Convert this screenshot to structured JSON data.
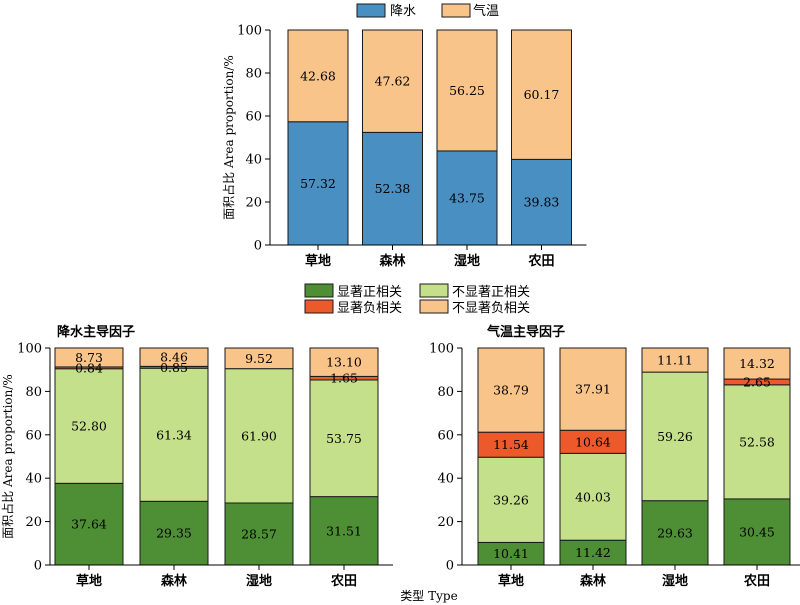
{
  "x_label": "类型 Type",
  "chart_data": [
    {
      "type": "bar",
      "stacked": true,
      "title": "",
      "ylabel": "面积占比 Area proportion/%",
      "ylim": [
        0,
        100
      ],
      "yticks": [
        0,
        20,
        40,
        60,
        80,
        100
      ],
      "legend_position": "top-center",
      "categories": [
        "草地",
        "森林",
        "湿地",
        "农田"
      ],
      "series": [
        {
          "name": "降水",
          "color": "#4a8fc2",
          "values": [
            57.32,
            52.38,
            43.75,
            39.83
          ],
          "labels": [
            "57.32",
            "52.38",
            "43.75",
            "39.83"
          ]
        },
        {
          "name": "气温",
          "color": "#f9c48a",
          "values": [
            42.68,
            47.62,
            56.25,
            60.17
          ],
          "labels": [
            "42.68",
            "47.62",
            "56.25",
            "60.17"
          ]
        }
      ]
    },
    {
      "type": "bar",
      "stacked": true,
      "title": "降水主导因子",
      "ylabel": "面积占比 Area proportion/%",
      "ylim": [
        0,
        100
      ],
      "yticks": [
        0,
        20,
        40,
        60,
        80,
        100
      ],
      "legend_position": "top-center",
      "categories": [
        "草地",
        "森林",
        "湿地",
        "农田"
      ],
      "series": [
        {
          "name": "显著正相关",
          "color": "#4e8f35",
          "values": [
            37.64,
            29.35,
            28.57,
            31.51
          ],
          "labels": [
            "37.64",
            "29.35",
            "28.57",
            "31.51"
          ]
        },
        {
          "name": "不显著正相关",
          "color": "#c5e08a",
          "values": [
            52.8,
            61.34,
            61.9,
            53.75
          ],
          "labels": [
            "52.80",
            "61.34",
            "61.90",
            "53.75"
          ]
        },
        {
          "name": "显著负相关",
          "color": "#ec5a2b",
          "values": [
            0.84,
            0.85,
            0,
            1.65
          ],
          "labels": [
            "0.84",
            "0.85",
            "",
            "1.65"
          ]
        },
        {
          "name": "不显著负相关",
          "color": "#f9c48a",
          "values": [
            8.73,
            8.46,
            9.52,
            13.1
          ],
          "labels": [
            "8.73",
            "8.46",
            "9.52",
            "13.10"
          ]
        }
      ]
    },
    {
      "type": "bar",
      "stacked": true,
      "title": "气温主导因子",
      "ylabel": "",
      "ylim": [
        0,
        100
      ],
      "yticks": [
        0,
        20,
        40,
        60,
        80,
        100
      ],
      "categories": [
        "草地",
        "森林",
        "湿地",
        "农田"
      ],
      "series": [
        {
          "name": "显著正相关",
          "color": "#4e8f35",
          "values": [
            10.41,
            11.42,
            29.63,
            30.45
          ],
          "labels": [
            "10.41",
            "11.42",
            "29.63",
            "30.45"
          ]
        },
        {
          "name": "不显著正相关",
          "color": "#c5e08a",
          "values": [
            39.26,
            40.03,
            59.26,
            52.58
          ],
          "labels": [
            "39.26",
            "40.03",
            "59.26",
            "52.58"
          ]
        },
        {
          "name": "显著负相关",
          "color": "#ec5a2b",
          "values": [
            11.54,
            10.64,
            0,
            2.65
          ],
          "labels": [
            "11.54",
            "10.64",
            "",
            "2.65"
          ]
        },
        {
          "name": "不显著负相关",
          "color": "#f9c48a",
          "values": [
            38.79,
            37.91,
            11.11,
            14.32
          ],
          "labels": [
            "38.79",
            "37.91",
            "11.11",
            "14.32"
          ]
        }
      ]
    }
  ]
}
